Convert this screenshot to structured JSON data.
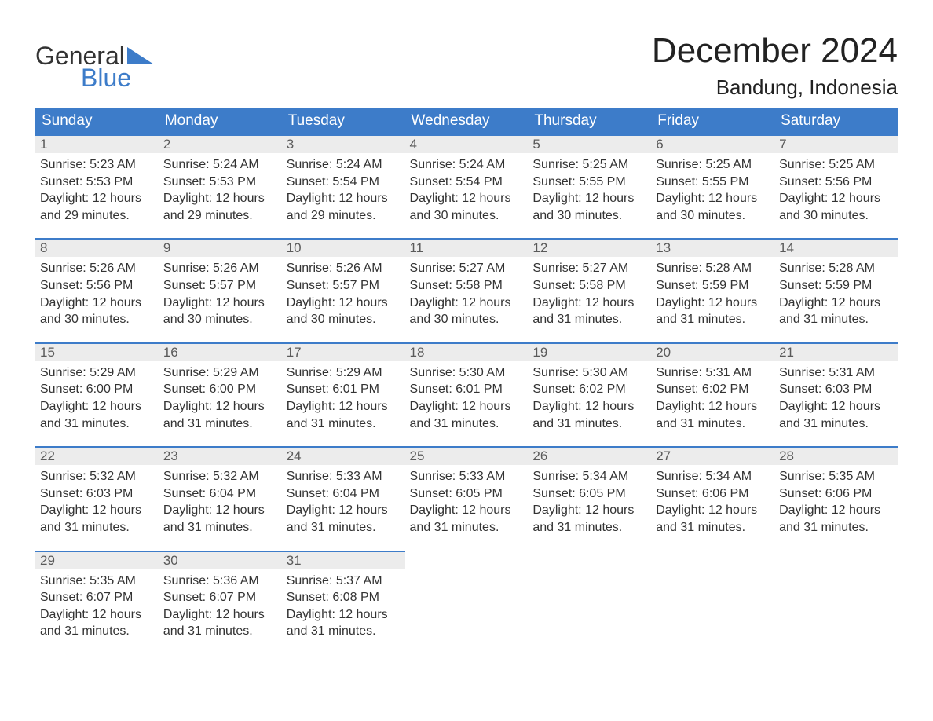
{
  "brand": {
    "top": "General",
    "bottom": "Blue",
    "triangle_color": "#3d7cc9"
  },
  "title": "December 2024",
  "location": "Bandung, Indonesia",
  "theme": {
    "header_bg": "#3d7cc9",
    "header_text": "#ffffff",
    "daynum_bg": "#ececec",
    "daynum_border": "#3d7cc9",
    "body_bg": "#ffffff",
    "text_color": "#333333",
    "title_fontsize": 44,
    "location_fontsize": 26,
    "dayheader_fontsize": 19,
    "cell_fontsize": 16
  },
  "day_headers": [
    "Sunday",
    "Monday",
    "Tuesday",
    "Wednesday",
    "Thursday",
    "Friday",
    "Saturday"
  ],
  "weeks": [
    [
      {
        "n": "1",
        "sr": "5:23 AM",
        "ss": "5:53 PM",
        "dl": "12 hours and 29 minutes."
      },
      {
        "n": "2",
        "sr": "5:24 AM",
        "ss": "5:53 PM",
        "dl": "12 hours and 29 minutes."
      },
      {
        "n": "3",
        "sr": "5:24 AM",
        "ss": "5:54 PM",
        "dl": "12 hours and 29 minutes."
      },
      {
        "n": "4",
        "sr": "5:24 AM",
        "ss": "5:54 PM",
        "dl": "12 hours and 30 minutes."
      },
      {
        "n": "5",
        "sr": "5:25 AM",
        "ss": "5:55 PM",
        "dl": "12 hours and 30 minutes."
      },
      {
        "n": "6",
        "sr": "5:25 AM",
        "ss": "5:55 PM",
        "dl": "12 hours and 30 minutes."
      },
      {
        "n": "7",
        "sr": "5:25 AM",
        "ss": "5:56 PM",
        "dl": "12 hours and 30 minutes."
      }
    ],
    [
      {
        "n": "8",
        "sr": "5:26 AM",
        "ss": "5:56 PM",
        "dl": "12 hours and 30 minutes."
      },
      {
        "n": "9",
        "sr": "5:26 AM",
        "ss": "5:57 PM",
        "dl": "12 hours and 30 minutes."
      },
      {
        "n": "10",
        "sr": "5:26 AM",
        "ss": "5:57 PM",
        "dl": "12 hours and 30 minutes."
      },
      {
        "n": "11",
        "sr": "5:27 AM",
        "ss": "5:58 PM",
        "dl": "12 hours and 30 minutes."
      },
      {
        "n": "12",
        "sr": "5:27 AM",
        "ss": "5:58 PM",
        "dl": "12 hours and 31 minutes."
      },
      {
        "n": "13",
        "sr": "5:28 AM",
        "ss": "5:59 PM",
        "dl": "12 hours and 31 minutes."
      },
      {
        "n": "14",
        "sr": "5:28 AM",
        "ss": "5:59 PM",
        "dl": "12 hours and 31 minutes."
      }
    ],
    [
      {
        "n": "15",
        "sr": "5:29 AM",
        "ss": "6:00 PM",
        "dl": "12 hours and 31 minutes."
      },
      {
        "n": "16",
        "sr": "5:29 AM",
        "ss": "6:00 PM",
        "dl": "12 hours and 31 minutes."
      },
      {
        "n": "17",
        "sr": "5:29 AM",
        "ss": "6:01 PM",
        "dl": "12 hours and 31 minutes."
      },
      {
        "n": "18",
        "sr": "5:30 AM",
        "ss": "6:01 PM",
        "dl": "12 hours and 31 minutes."
      },
      {
        "n": "19",
        "sr": "5:30 AM",
        "ss": "6:02 PM",
        "dl": "12 hours and 31 minutes."
      },
      {
        "n": "20",
        "sr": "5:31 AM",
        "ss": "6:02 PM",
        "dl": "12 hours and 31 minutes."
      },
      {
        "n": "21",
        "sr": "5:31 AM",
        "ss": "6:03 PM",
        "dl": "12 hours and 31 minutes."
      }
    ],
    [
      {
        "n": "22",
        "sr": "5:32 AM",
        "ss": "6:03 PM",
        "dl": "12 hours and 31 minutes."
      },
      {
        "n": "23",
        "sr": "5:32 AM",
        "ss": "6:04 PM",
        "dl": "12 hours and 31 minutes."
      },
      {
        "n": "24",
        "sr": "5:33 AM",
        "ss": "6:04 PM",
        "dl": "12 hours and 31 minutes."
      },
      {
        "n": "25",
        "sr": "5:33 AM",
        "ss": "6:05 PM",
        "dl": "12 hours and 31 minutes."
      },
      {
        "n": "26",
        "sr": "5:34 AM",
        "ss": "6:05 PM",
        "dl": "12 hours and 31 minutes."
      },
      {
        "n": "27",
        "sr": "5:34 AM",
        "ss": "6:06 PM",
        "dl": "12 hours and 31 minutes."
      },
      {
        "n": "28",
        "sr": "5:35 AM",
        "ss": "6:06 PM",
        "dl": "12 hours and 31 minutes."
      }
    ],
    [
      {
        "n": "29",
        "sr": "5:35 AM",
        "ss": "6:07 PM",
        "dl": "12 hours and 31 minutes."
      },
      {
        "n": "30",
        "sr": "5:36 AM",
        "ss": "6:07 PM",
        "dl": "12 hours and 31 minutes."
      },
      {
        "n": "31",
        "sr": "5:37 AM",
        "ss": "6:08 PM",
        "dl": "12 hours and 31 minutes."
      },
      null,
      null,
      null,
      null
    ]
  ],
  "labels": {
    "sunrise": "Sunrise:",
    "sunset": "Sunset:",
    "daylight": "Daylight:"
  }
}
